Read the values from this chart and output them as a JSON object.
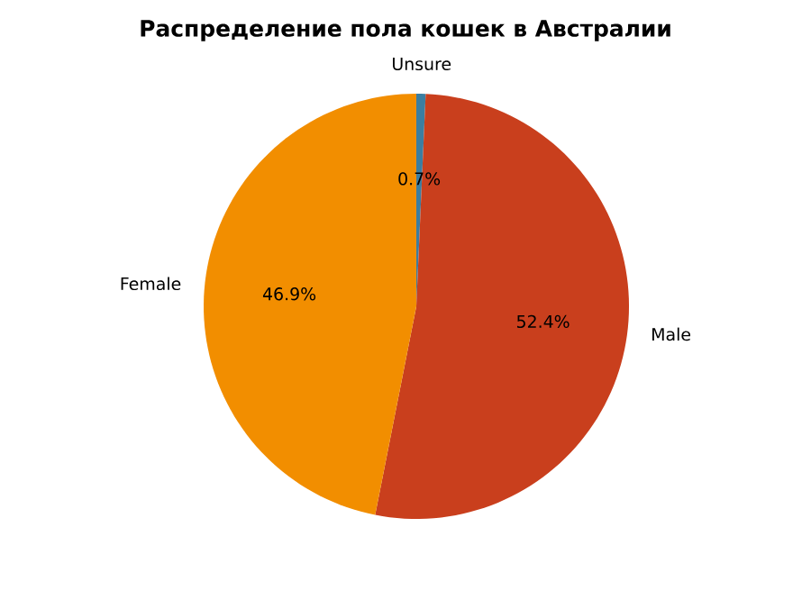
{
  "chart_data": {
    "type": "pie",
    "title": "Распределение пола кошек в Австралии",
    "categories": [
      "Unsure",
      "Male",
      "Female"
    ],
    "values": [
      0.7,
      52.4,
      46.9
    ],
    "value_labels": [
      "0.7%",
      "52.4%",
      "46.9%"
    ],
    "colors": [
      "#3b7ea1",
      "#c93f1d",
      "#f28e00"
    ]
  }
}
